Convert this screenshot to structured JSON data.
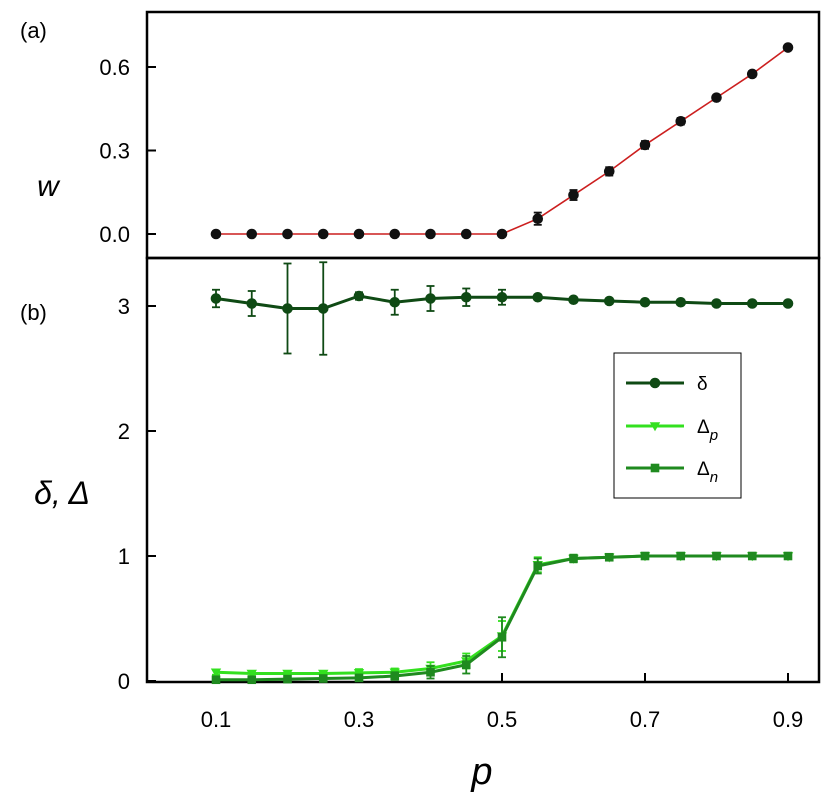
{
  "chart_data": [
    {
      "panel": "(a)",
      "type": "line",
      "ylabel": "w",
      "xlabel": "",
      "xlim": [
        0.0,
        0.93
      ],
      "ylim": [
        -0.05,
        0.76
      ],
      "yticks": [
        "0.0",
        "0.3",
        "0.6"
      ],
      "ytick_values": [
        0.0,
        0.3,
        0.6
      ],
      "series": [
        {
          "name": "w",
          "line_color": "#cc1f1f",
          "marker_color": "#111111",
          "marker": "circle",
          "x": [
            0.1,
            0.15,
            0.2,
            0.25,
            0.3,
            0.35,
            0.4,
            0.45,
            0.5,
            0.55,
            0.6,
            0.65,
            0.7,
            0.75,
            0.8,
            0.85,
            0.9
          ],
          "values": [
            0.0,
            0.0,
            0.0,
            0.0,
            0.0,
            0.0,
            0.0,
            0.0,
            0.0,
            0.055,
            0.14,
            0.225,
            0.32,
            0.405,
            0.49,
            0.575,
            0.67
          ],
          "errors": [
            0.005,
            0.005,
            0.005,
            0.005,
            0.005,
            0.005,
            0.005,
            0.005,
            0.008,
            0.022,
            0.018,
            0.015,
            0.014,
            0.012,
            0.01,
            0.01,
            0.008
          ]
        }
      ]
    },
    {
      "panel": "(b)",
      "type": "line",
      "ylabel": "δ, Δ",
      "xlabel": "p",
      "xlim": [
        0.0,
        0.93
      ],
      "ylim": [
        0.0,
        3.4
      ],
      "xticks": [
        "0.1",
        "0.3",
        "0.5",
        "0.7",
        "0.9"
      ],
      "xtick_values": [
        0.1,
        0.3,
        0.5,
        0.7,
        0.9
      ],
      "yticks": [
        "0",
        "1",
        "2",
        "3"
      ],
      "ytick_values": [
        0,
        1,
        2,
        3
      ],
      "legend_position": "middle-right",
      "series": [
        {
          "name": "δ",
          "legend_main": "δ",
          "legend_sub": "",
          "color": "#0f4a14",
          "marker": "circle",
          "x": [
            0.1,
            0.15,
            0.2,
            0.25,
            0.3,
            0.35,
            0.4,
            0.45,
            0.5,
            0.55,
            0.6,
            0.65,
            0.7,
            0.75,
            0.8,
            0.85,
            0.9
          ],
          "values": [
            3.06,
            3.02,
            2.98,
            2.98,
            3.08,
            3.03,
            3.06,
            3.07,
            3.07,
            3.07,
            3.05,
            3.04,
            3.03,
            3.03,
            3.02,
            3.02,
            3.02
          ],
          "errors": [
            0.07,
            0.1,
            0.36,
            0.37,
            0.03,
            0.1,
            0.1,
            0.07,
            0.06,
            0.02,
            0.02,
            0.02,
            0.02,
            0.02,
            0.02,
            0.02,
            0.02
          ]
        },
        {
          "name": "Δp",
          "legend_main": "Δ",
          "legend_sub": "p",
          "color": "#33e01f",
          "marker": "triangle-down",
          "x": [
            0.1,
            0.15,
            0.2,
            0.25,
            0.3,
            0.35,
            0.4,
            0.45,
            0.5,
            0.55,
            0.6,
            0.65,
            0.7,
            0.75,
            0.8,
            0.85,
            0.9
          ],
          "values": [
            0.07,
            0.06,
            0.06,
            0.06,
            0.065,
            0.07,
            0.1,
            0.16,
            0.36,
            0.93,
            0.98,
            0.99,
            1.0,
            1.0,
            1.0,
            1.0,
            1.0
          ],
          "errors": [
            0.02,
            0.02,
            0.02,
            0.02,
            0.03,
            0.03,
            0.05,
            0.06,
            0.12,
            0.06,
            0.03,
            0.02,
            0.02,
            0.02,
            0.02,
            0.02,
            0.02
          ]
        },
        {
          "name": "Δn",
          "legend_main": "Δ",
          "legend_sub": "n",
          "color": "#1f8a1f",
          "marker": "square",
          "x": [
            0.1,
            0.15,
            0.2,
            0.25,
            0.3,
            0.35,
            0.4,
            0.45,
            0.5,
            0.55,
            0.6,
            0.65,
            0.7,
            0.75,
            0.8,
            0.85,
            0.9
          ],
          "values": [
            0.01,
            0.01,
            0.015,
            0.02,
            0.025,
            0.04,
            0.07,
            0.13,
            0.35,
            0.92,
            0.98,
            0.99,
            1.0,
            1.0,
            1.0,
            1.0,
            1.0
          ],
          "errors": [
            0.01,
            0.01,
            0.01,
            0.01,
            0.02,
            0.03,
            0.05,
            0.07,
            0.16,
            0.06,
            0.03,
            0.02,
            0.02,
            0.02,
            0.02,
            0.02,
            0.02
          ]
        }
      ]
    }
  ]
}
